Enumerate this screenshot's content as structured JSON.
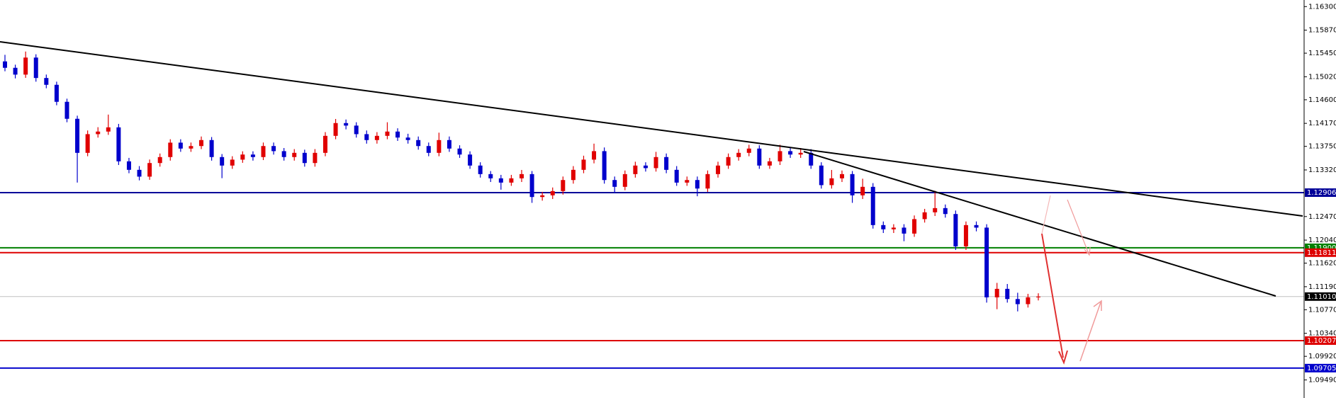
{
  "chart_data": {
    "type": "candlestick",
    "ylim": [
      1.0916,
      1.1642
    ],
    "yticks": [
      {
        "value": 1.163,
        "label": "1.16300"
      },
      {
        "value": 1.1587,
        "label": "1.15870"
      },
      {
        "value": 1.1545,
        "label": "1.15450"
      },
      {
        "value": 1.1502,
        "label": "1.15020"
      },
      {
        "value": 1.146,
        "label": "1.14600"
      },
      {
        "value": 1.1417,
        "label": "1.14170"
      },
      {
        "value": 1.1375,
        "label": "1.13750"
      },
      {
        "value": 1.1332,
        "label": "1.13320"
      },
      {
        "value": 1.1247,
        "label": "1.12470"
      },
      {
        "value": 1.1204,
        "label": "1.12040"
      },
      {
        "value": 1.1162,
        "label": "1.11620"
      },
      {
        "value": 1.1119,
        "label": "1.11190"
      },
      {
        "value": 1.1077,
        "label": "1.10770"
      },
      {
        "value": 1.1034,
        "label": "1.10340"
      },
      {
        "value": 1.0992,
        "label": "1.09920"
      },
      {
        "value": 1.0949,
        "label": "1.09490"
      }
    ],
    "up_color": "#e00000",
    "down_color": "#0000cc",
    "open": [
      1.153,
      1.15183,
      1.15059,
      1.1537,
      1.14997,
      1.14873,
      1.14563,
      1.14253,
      1.13632,
      1.13973,
      1.1402,
      1.14097,
      1.13477,
      1.13322,
      1.13198,
      1.13446,
      1.13555,
      1.13818,
      1.1371,
      1.13756,
      1.13865,
      1.13555,
      1.134,
      1.13508,
      1.13601,
      1.13555,
      1.13756,
      1.13663,
      1.13555,
      1.13632,
      1.13446,
      1.13632,
      1.13942,
      1.14175,
      1.14129,
      1.13973,
      1.13865,
      1.13942,
      1.1402,
      1.13911,
      1.13865,
      1.13756,
      1.13632,
      1.13865,
      1.1371,
      1.13601,
      1.134,
      1.13244,
      1.13167,
      1.13089,
      1.13167,
      1.13244,
      1.12826,
      1.12857,
      1.12934,
      1.13136,
      1.13322,
      1.13508,
      1.13663,
      1.13136,
      1.13012,
      1.13244,
      1.134,
      1.13353,
      1.13555,
      1.13322,
      1.13089,
      1.13136,
      1.12981,
      1.13244,
      1.134,
      1.13555,
      1.13632,
      1.1371,
      1.134,
      1.13477,
      1.13663,
      1.13601,
      1.13632,
      1.134,
      1.13043,
      1.13167,
      1.13244,
      1.12857,
      1.13012,
      1.12314,
      1.12237,
      1.12268,
      1.12159,
      1.12423,
      1.12547,
      1.12624,
      1.12516,
      1.11926,
      1.12314,
      1.12268,
      1.10996,
      1.11151,
      1.10965,
      1.10872,
      1.10996
    ],
    "high": [
      1.1542,
      1.1524,
      1.1548,
      1.1543,
      1.1506,
      1.1493,
      1.1462,
      1.1431,
      1.1404,
      1.141,
      1.1433,
      1.1416,
      1.1354,
      1.1339,
      1.1351,
      1.1362,
      1.1388,
      1.1388,
      1.1382,
      1.1393,
      1.1392,
      1.1361,
      1.1357,
      1.1366,
      1.1366,
      1.1382,
      1.1382,
      1.1372,
      1.137,
      1.1369,
      1.137,
      1.1401,
      1.1425,
      1.1424,
      1.1419,
      1.1404,
      1.1401,
      1.1419,
      1.1408,
      1.1398,
      1.1393,
      1.1382,
      1.14,
      1.1393,
      1.1377,
      1.1366,
      1.1346,
      1.133,
      1.1323,
      1.1323,
      1.1332,
      1.133,
      1.1292,
      1.13,
      1.132,
      1.1339,
      1.1358,
      1.138,
      1.1373,
      1.132,
      1.1331,
      1.1347,
      1.1346,
      1.1365,
      1.1362,
      1.1339,
      1.132,
      1.132,
      1.1331,
      1.1347,
      1.1362,
      1.137,
      1.1378,
      1.1377,
      1.1354,
      1.1378,
      1.1373,
      1.1372,
      1.137,
      1.1346,
      1.1332,
      1.1331,
      1.133,
      1.1316,
      1.1308,
      1.1238,
      1.1233,
      1.1233,
      1.1249,
      1.1261,
      1.1294,
      1.1269,
      1.1258,
      1.1238,
      1.1238,
      1.1233,
      1.1126,
      1.1124,
      1.1108,
      1.1106,
      1.1107
    ],
    "low": [
      1.1512,
      1.1499,
      1.15,
      1.1493,
      1.1481,
      1.145,
      1.1419,
      1.1309,
      1.1357,
      1.1391,
      1.1396,
      1.1341,
      1.1326,
      1.1313,
      1.1314,
      1.1338,
      1.1349,
      1.1365,
      1.1365,
      1.137,
      1.1349,
      1.1317,
      1.1334,
      1.1345,
      1.1349,
      1.135,
      1.136,
      1.1349,
      1.1349,
      1.1338,
      1.1338,
      1.1357,
      1.1388,
      1.1406,
      1.1391,
      1.138,
      1.138,
      1.1388,
      1.1385,
      1.138,
      1.1369,
      1.1357,
      1.1357,
      1.1365,
      1.1354,
      1.1334,
      1.1318,
      1.131,
      1.1296,
      1.1303,
      1.131,
      1.1272,
      1.1276,
      1.1279,
      1.1287,
      1.1307,
      1.1326,
      1.1344,
      1.1307,
      1.129,
      1.1295,
      1.1318,
      1.1329,
      1.1329,
      1.1326,
      1.1303,
      1.1303,
      1.1284,
      1.1292,
      1.1318,
      1.1334,
      1.1349,
      1.1357,
      1.1334,
      1.1334,
      1.1341,
      1.1354,
      1.1354,
      1.1334,
      1.1298,
      1.1298,
      1.131,
      1.1272,
      1.1279,
      1.1225,
      1.1217,
      1.1217,
      1.1202,
      1.121,
      1.1236,
      1.1248,
      1.1245,
      1.1186,
      1.1186,
      1.122,
      1.109,
      1.1078,
      1.109,
      1.1074,
      1.1081,
      1.1094
    ],
    "close": [
      1.15183,
      1.15059,
      1.1537,
      1.14997,
      1.14873,
      1.14563,
      1.14253,
      1.13632,
      1.13973,
      1.1402,
      1.14097,
      1.13477,
      1.13322,
      1.13198,
      1.13446,
      1.13555,
      1.13818,
      1.1371,
      1.13756,
      1.13865,
      1.13555,
      1.134,
      1.13508,
      1.13601,
      1.13555,
      1.13756,
      1.13663,
      1.13555,
      1.13632,
      1.13446,
      1.13632,
      1.13942,
      1.14175,
      1.14129,
      1.13973,
      1.13865,
      1.13942,
      1.1402,
      1.13911,
      1.13865,
      1.13756,
      1.13632,
      1.13865,
      1.1371,
      1.13601,
      1.134,
      1.13244,
      1.13167,
      1.13089,
      1.13167,
      1.13244,
      1.12826,
      1.12857,
      1.12934,
      1.13136,
      1.13322,
      1.13508,
      1.13663,
      1.13136,
      1.13012,
      1.13244,
      1.134,
      1.13353,
      1.13555,
      1.13322,
      1.13089,
      1.13136,
      1.12981,
      1.13244,
      1.134,
      1.13555,
      1.13632,
      1.1371,
      1.134,
      1.13477,
      1.13663,
      1.13601,
      1.13632,
      1.134,
      1.13043,
      1.13167,
      1.13244,
      1.12857,
      1.13012,
      1.12314,
      1.12237,
      1.12268,
      1.12159,
      1.12423,
      1.12547,
      1.12624,
      1.12516,
      1.11926,
      1.12314,
      1.12268,
      1.10996,
      1.11151,
      1.10965,
      1.10872,
      1.10996,
      1.1101
    ],
    "levels": [
      {
        "value": 1.12906,
        "label": "1.12906",
        "color": "#000099"
      },
      {
        "value": 1.119,
        "label": "1.11900",
        "color": "#008000"
      },
      {
        "value": 1.11811,
        "label": "1.11811",
        "color": "#dd0000"
      },
      {
        "value": 1.10207,
        "label": "1.10207",
        "color": "#dd0000"
      },
      {
        "value": 1.09705,
        "label": "1.09705",
        "color": "#0000cc"
      }
    ],
    "current_price": {
      "value": 1.1101,
      "label": "1.11010",
      "color": "#000000"
    }
  }
}
